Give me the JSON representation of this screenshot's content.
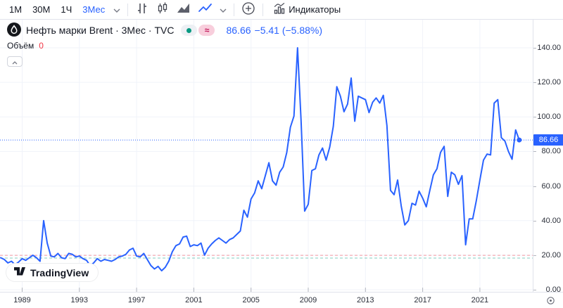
{
  "toolbar": {
    "intervals": [
      {
        "label": "1М",
        "active": false
      },
      {
        "label": "30М",
        "active": false
      },
      {
        "label": "1Ч",
        "active": false
      },
      {
        "label": "3Мес",
        "active": true
      }
    ],
    "chart_types": [
      "bars",
      "candles",
      "area",
      "line"
    ],
    "active_chart_type": "line",
    "indicators_label": "Индикаторы"
  },
  "legend": {
    "symbol_title": "Нефть марки Brent · 3Мес · TVC",
    "delayed_symbol": "≈",
    "price": "86.66",
    "change": "−5.41 (−5.88%)",
    "volume_label": "Объём",
    "volume_value": "0"
  },
  "price_scale": {
    "labels": [
      "140.00",
      "120.00",
      "100.00",
      "80.00",
      "60.00",
      "40.00",
      "20.00",
      "0.00"
    ],
    "last_price_label": "86.66"
  },
  "time_scale": {
    "labels": [
      "1989",
      "1993",
      "1997",
      "2001",
      "2005",
      "2009",
      "2013",
      "2017",
      "2021"
    ]
  },
  "watermark": {
    "text": "TradingView"
  },
  "colors": {
    "accent": "#2962FF",
    "series_line": "#2962FF",
    "negative": "#F23645",
    "status_dot": "#089981",
    "delayed_bg": "#F8CEDC",
    "delayed_fg": "#C2185B",
    "grid": "#F0F3FA",
    "border": "#E0E3EB"
  },
  "chart_data": {
    "type": "line",
    "title": "Нефть марки Brent · 3Мес · TVC",
    "series_color": "#2962FF",
    "x_start": 1987.5,
    "x_step": 0.25,
    "x_unit": "year",
    "values": [
      18.5,
      17.5,
      15.5,
      16.5,
      14.5,
      16,
      18,
      17,
      18.5,
      20,
      18.5,
      16.5,
      40,
      27,
      19.5,
      19,
      21,
      18.5,
      18,
      21,
      20.5,
      19,
      19.5,
      18,
      17,
      14,
      15.5,
      18,
      16.5,
      17.5,
      17,
      16.5,
      17.5,
      19,
      19.5,
      20.5,
      23,
      24,
      19.5,
      19,
      21,
      17.5,
      14,
      12,
      13.5,
      11,
      13,
      16.5,
      22,
      25.5,
      26.5,
      30.5,
      31,
      25,
      26,
      25.5,
      27,
      20,
      24,
      26.5,
      28.5,
      30,
      28.5,
      27,
      29,
      30,
      32,
      34,
      46,
      42,
      52.5,
      56,
      63,
      58.5,
      66,
      73.5,
      63,
      60.5,
      68,
      71,
      79.5,
      94,
      100.5,
      140,
      98,
      45.5,
      49.5,
      69,
      70,
      78,
      82,
      75,
      82.5,
      94.5,
      117.5,
      112,
      103,
      107.5,
      122.5,
      97.5,
      112,
      111,
      110,
      102.5,
      108.5,
      111,
      108,
      112.5,
      95,
      57.5,
      55,
      63.5,
      48.5,
      37.5,
      40,
      50,
      49,
      57,
      53,
      48,
      57.5,
      66.5,
      70,
      79.5,
      83,
      54,
      68,
      66.5,
      61,
      66,
      26,
      41,
      41,
      51.5,
      63.5,
      75,
      78.5,
      78,
      108,
      110,
      88,
      86,
      80,
      75.5,
      92.5,
      86.66
    ],
    "last_price": 86.66,
    "change": -5.41,
    "change_pct": -5.88,
    "ylim": [
      0,
      140
    ],
    "y_ticks": [
      0,
      20,
      40,
      60,
      80,
      100,
      120,
      140
    ],
    "x_ticks": [
      1989,
      1993,
      1997,
      2001,
      2005,
      2009,
      2013,
      2017,
      2021
    ],
    "grid": true,
    "legend_position": "none",
    "reference_lines": [
      {
        "name": "last-price-line",
        "value": 86.66,
        "style": "dotted",
        "color": "#2962FF",
        "opacity": 1
      },
      {
        "name": "red-dashed-level",
        "value": 19.9,
        "style": "dashed",
        "color": "#F23645",
        "opacity": 0.5
      },
      {
        "name": "teal-dashed-level",
        "value": 18.3,
        "style": "dashed",
        "color": "#089981",
        "opacity": 0.5
      }
    ]
  }
}
